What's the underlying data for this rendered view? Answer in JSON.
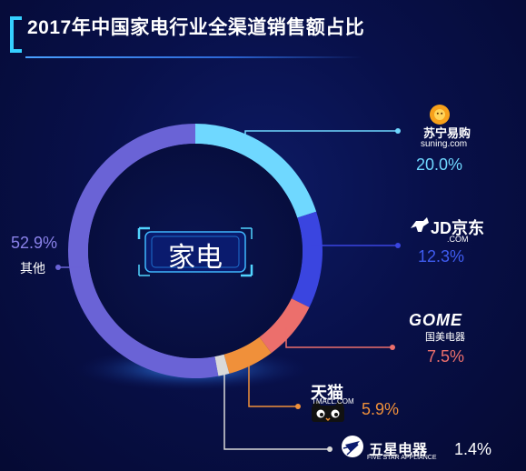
{
  "title": "2017年中国家电行业全渠道销售额占比",
  "center_label": "家电",
  "colors": {
    "suning": "#6fd8ff",
    "jd": "#3a45e0",
    "gome": "#ec6f6c",
    "tmall": "#f0903a",
    "fivestar": "#d9d9d9",
    "other": "#6a63d6"
  },
  "brands": {
    "suning_name": "苏宁易购",
    "suning_sub": "suning.com",
    "jd_name": "JD京东",
    "jd_sub": ".COM",
    "gome_name": "GOME",
    "gome_sub": "国美电器",
    "tmall_name": "天猫",
    "tmall_sub": "TMALL.COM",
    "fivestar_name": "五星电器",
    "fivestar_sub": "FIVE STAR APPLIANCE"
  },
  "labels": {
    "suning_pct": "20.0%",
    "jd_pct": "12.3%",
    "gome_pct": "7.5%",
    "tmall_pct": "5.9%",
    "fivestar_pct": "1.4%",
    "other_pct": "52.9%",
    "other_name": "其他"
  },
  "chart_data": {
    "type": "pie",
    "title": "2017年中国家电行业全渠道销售额占比",
    "donut": true,
    "slices": [
      {
        "label": "苏宁易购",
        "value": 20.0,
        "color": "#6fd8ff"
      },
      {
        "label": "京东",
        "value": 12.3,
        "color": "#3a45e0"
      },
      {
        "label": "国美电器",
        "value": 7.5,
        "color": "#ec6f6c"
      },
      {
        "label": "天猫",
        "value": 5.9,
        "color": "#f0903a"
      },
      {
        "label": "五星电器",
        "value": 1.4,
        "color": "#d9d9d9"
      },
      {
        "label": "其他",
        "value": 52.9,
        "color": "#6a63d6"
      }
    ]
  }
}
